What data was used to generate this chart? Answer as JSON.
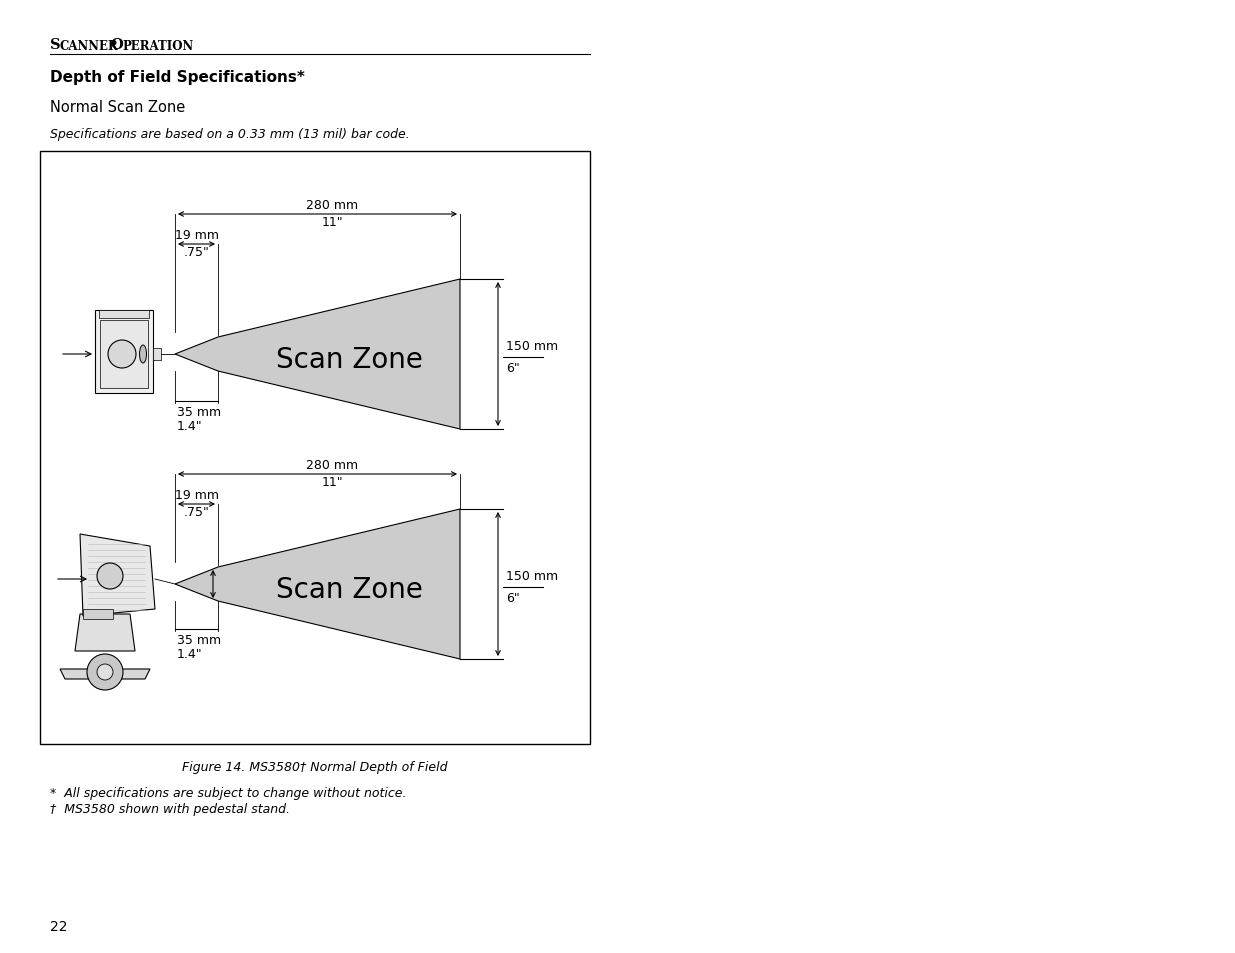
{
  "bg_color": "#ffffff",
  "scan_zone_color": "#cccccc",
  "text_color": "#000000",
  "header_text": "Scanner Operation",
  "title_text": "Depth of Field Specifications*",
  "subtitle_text": "Normal Scan Zone",
  "spec_note": "Specifications are based on a 0.33 mm (13 mil) bar code.",
  "figure_caption": "Figure 14. MS3580† Normal Depth of Field",
  "footnote1": "*  All specifications are subject to change without notice.",
  "footnote2": "†  MS3580 shown with pedestal stand.",
  "page_num": "22",
  "scan_zone_label": "Scan Zone",
  "dim_280mm": "280 mm",
  "dim_11in": "11\"",
  "dim_19mm": "19 mm",
  "dim_75in": ".75\"",
  "dim_35mm": "35 mm",
  "dim_14in": "1.4\"",
  "dim_150mm": "150 mm",
  "dim_6in": "6\""
}
